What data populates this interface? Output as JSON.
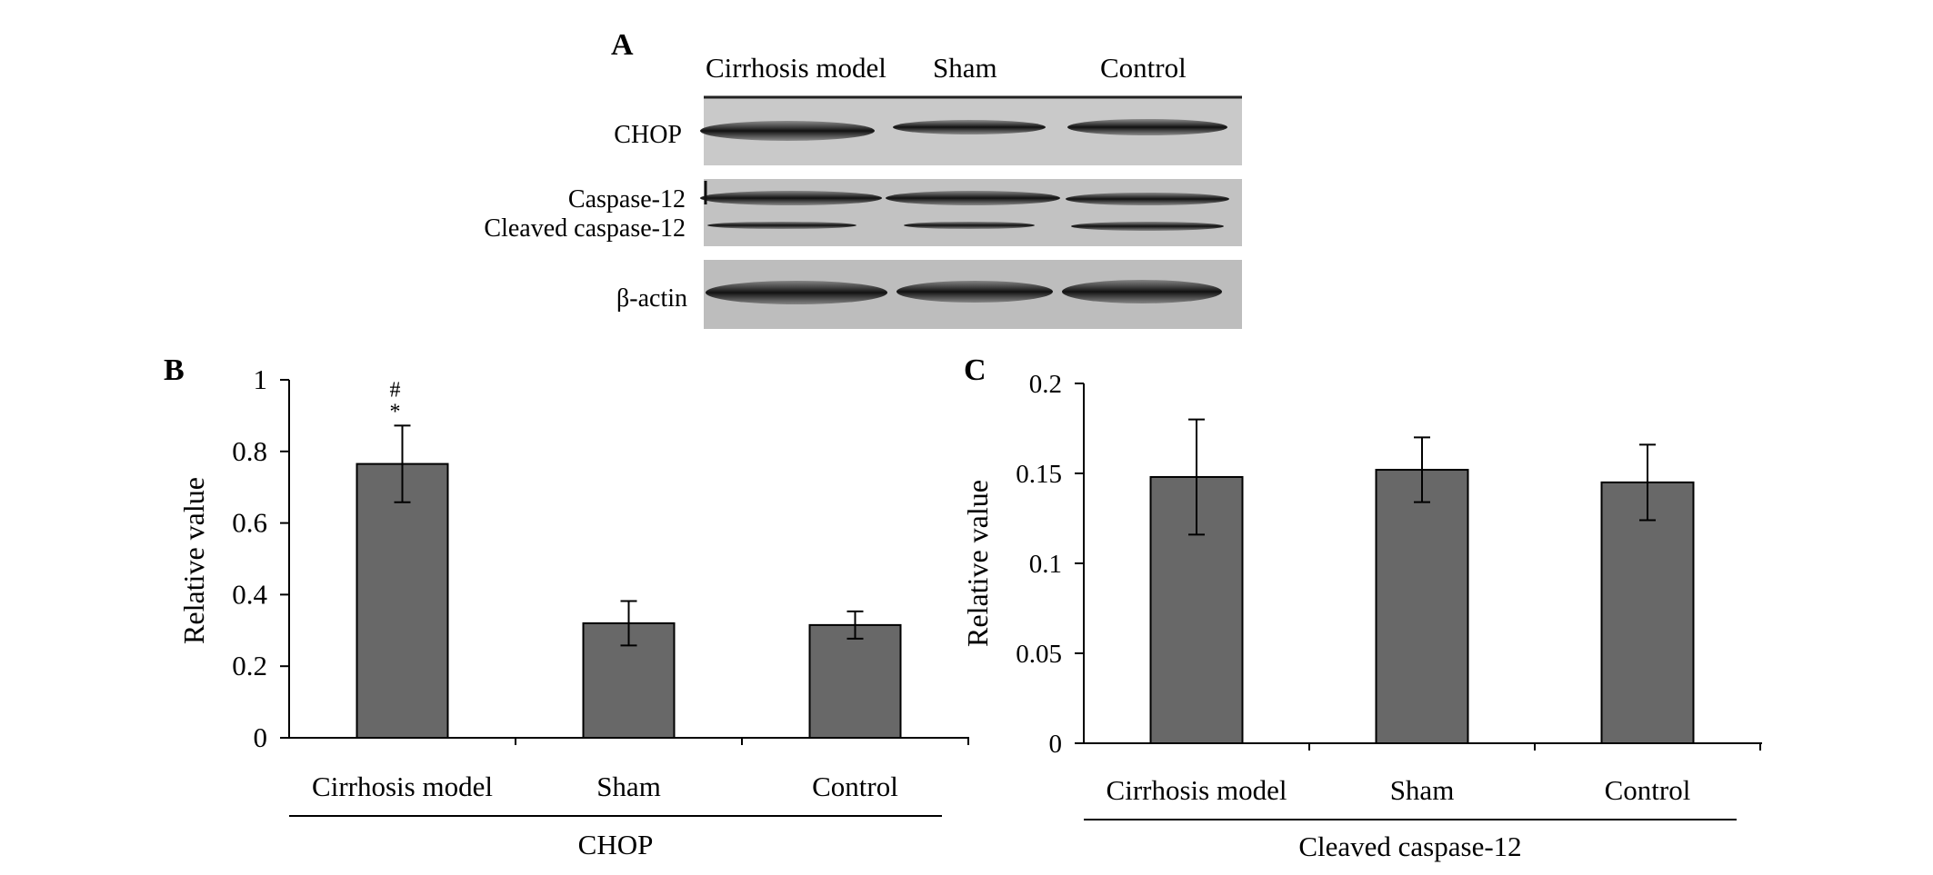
{
  "panels": {
    "a_label": "A",
    "b_label": "B",
    "c_label": "C"
  },
  "blot": {
    "lanes": [
      "Cirrhosis model",
      "Sham",
      "Control"
    ],
    "rows": {
      "chop": "CHOP",
      "caspase12": "Caspase-12",
      "cleaved": "Cleaved caspase-12",
      "actin": "β-actin"
    },
    "bar_color": "#686868"
  },
  "chart_data": [
    {
      "type": "bar",
      "categories": [
        "Cirrhosis model",
        "Sham",
        "Control"
      ],
      "values": [
        0.765,
        0.32,
        0.315
      ],
      "errors": [
        0.107,
        0.062,
        0.038
      ],
      "annotations": [
        "#\n*",
        "",
        ""
      ],
      "ylabel": "Relative value",
      "xlabel": "CHOP",
      "ylim": [
        0,
        1
      ],
      "yticks": [
        "0",
        "0.2",
        "0.4",
        "0.6",
        "0.8",
        "1"
      ],
      "grid": false
    },
    {
      "type": "bar",
      "categories": [
        "Cirrhosis model",
        "Sham",
        "Control"
      ],
      "values": [
        0.148,
        0.152,
        0.145
      ],
      "errors": [
        0.032,
        0.018,
        0.021
      ],
      "ylabel": "Relative value",
      "xlabel": "Cleaved caspase-12",
      "ylim": [
        0,
        0.2
      ],
      "yticks": [
        "0",
        "0.05",
        "0.1",
        "0.15",
        "0.2"
      ],
      "grid": false
    }
  ]
}
